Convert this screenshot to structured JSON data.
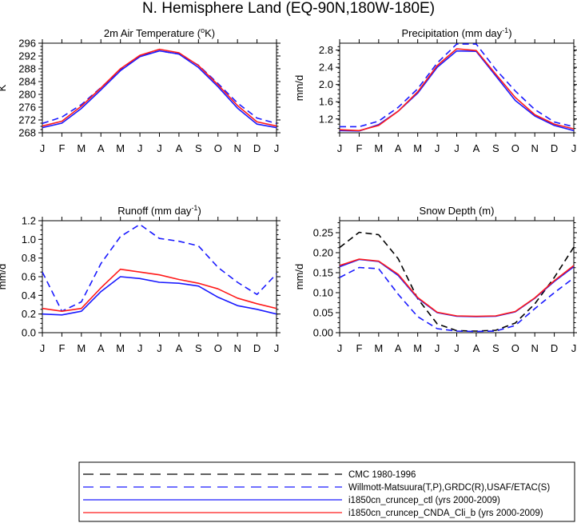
{
  "figure_title": "N. Hemisphere Land (EQ-90N,180W-180E)",
  "months": [
    "J",
    "F",
    "M",
    "A",
    "M",
    "J",
    "J",
    "A",
    "S",
    "O",
    "N",
    "D",
    "J"
  ],
  "legend": [
    {
      "label": "CMC 1980-1996",
      "color": "#000000",
      "dash": true
    },
    {
      "label": "Willmott-Matsuura(T,P),GRDC(R),USAF/ETAC(S)",
      "color": "#1a1aff",
      "dash": true
    },
    {
      "label": "i1850cn_cruncep_ctl (yrs 2000-2009)",
      "color": "#1a1aff",
      "dash": false
    },
    {
      "label": "i1850cn_cruncep_CNDA_Cli_b (yrs 2000-2009)",
      "color": "#ff1a1a",
      "dash": false
    }
  ],
  "chart_data": [
    {
      "type": "line",
      "title": "2m Air Temperature (°K)",
      "title_main": "2m Air Temperature (",
      "title_sup": "o",
      "title_end": "K)",
      "ylabel": "K",
      "ylim": [
        268,
        296
      ],
      "yticks": [
        268,
        272,
        276,
        280,
        284,
        288,
        292,
        296
      ],
      "x": [
        "J",
        "F",
        "M",
        "A",
        "M",
        "J",
        "J",
        "A",
        "S",
        "O",
        "N",
        "D",
        "J"
      ],
      "series": [
        {
          "values": [
            270.9,
            272.9,
            276.8,
            282.1,
            287.6,
            292.0,
            293.6,
            292.6,
            289.1,
            283.4,
            277.3,
            272.6,
            270.9
          ],
          "color": "#1a1aff",
          "dash": true
        },
        {
          "values": [
            269.6,
            271.0,
            275.6,
            281.4,
            287.4,
            291.8,
            293.6,
            292.6,
            288.4,
            282.4,
            275.7,
            270.7,
            269.6
          ],
          "color": "#1a1aff",
          "dash": false
        },
        {
          "values": [
            270.1,
            271.6,
            276.3,
            282.0,
            288.0,
            292.2,
            294.1,
            293.0,
            289.0,
            283.0,
            276.5,
            271.4,
            270.1
          ],
          "color": "#ff1a1a",
          "dash": false
        }
      ]
    },
    {
      "type": "line",
      "title": "Precipitation (mm day-1)",
      "title_main": "Precipitation (mm day",
      "title_sup": "-1",
      "title_end": ")",
      "ylabel": "mm/d",
      "ylim": [
        0.88,
        2.96
      ],
      "yticks": [
        1.2,
        1.6,
        2.0,
        2.4,
        2.8
      ],
      "x": [
        "J",
        "F",
        "M",
        "A",
        "M",
        "J",
        "J",
        "A",
        "S",
        "O",
        "N",
        "D",
        "J"
      ],
      "series": [
        {
          "values": [
            1.02,
            1.02,
            1.15,
            1.47,
            1.9,
            2.5,
            2.94,
            2.94,
            2.35,
            1.85,
            1.42,
            1.13,
            1.02
          ],
          "color": "#1a1aff",
          "dash": true
        },
        {
          "values": [
            0.93,
            0.92,
            1.07,
            1.38,
            1.8,
            2.4,
            2.78,
            2.77,
            2.2,
            1.63,
            1.27,
            1.05,
            0.93
          ],
          "color": "#1a1aff",
          "dash": false
        },
        {
          "values": [
            0.95,
            0.93,
            1.05,
            1.38,
            1.83,
            2.44,
            2.83,
            2.79,
            2.24,
            1.7,
            1.3,
            1.08,
            0.97
          ],
          "color": "#ff1a1a",
          "dash": false
        }
      ]
    },
    {
      "type": "line",
      "title": "Runoff (mm day-1)",
      "title_main": "Runoff (mm day",
      "title_sup": "-1",
      "title_end": ")",
      "ylabel": "mm/d",
      "ylim": [
        0.0,
        1.2
      ],
      "yticks": [
        0.0,
        0.2,
        0.4,
        0.6,
        0.8,
        1.0,
        1.2
      ],
      "x": [
        "J",
        "F",
        "M",
        "A",
        "M",
        "J",
        "J",
        "A",
        "S",
        "O",
        "N",
        "D",
        "J"
      ],
      "series": [
        {
          "values": [
            0.65,
            0.23,
            0.33,
            0.74,
            1.03,
            1.16,
            1.01,
            0.98,
            0.93,
            0.7,
            0.54,
            0.41,
            0.63
          ],
          "color": "#1a1aff",
          "dash": true
        },
        {
          "values": [
            0.2,
            0.19,
            0.23,
            0.44,
            0.6,
            0.58,
            0.54,
            0.53,
            0.5,
            0.38,
            0.29,
            0.25,
            0.2
          ],
          "color": "#1a1aff",
          "dash": false
        },
        {
          "values": [
            0.26,
            0.23,
            0.26,
            0.48,
            0.68,
            0.65,
            0.62,
            0.57,
            0.53,
            0.47,
            0.37,
            0.31,
            0.26
          ],
          "color": "#ff1a1a",
          "dash": false
        }
      ]
    },
    {
      "type": "line",
      "title": "Snow Depth (m)",
      "title_main": "Snow Depth (m)",
      "title_sup": "",
      "title_end": "",
      "ylabel": "mm/d",
      "ylim": [
        0.0,
        0.28
      ],
      "yticks": [
        0.0,
        0.05,
        0.1,
        0.15,
        0.2,
        0.25
      ],
      "x": [
        "J",
        "F",
        "M",
        "A",
        "M",
        "J",
        "J",
        "A",
        "S",
        "O",
        "N",
        "D",
        "J"
      ],
      "series": [
        {
          "values": [
            0.213,
            0.251,
            0.245,
            0.185,
            0.085,
            0.022,
            0.005,
            0.004,
            0.006,
            0.024,
            0.072,
            0.138,
            0.214
          ],
          "color": "#000000",
          "dash": true
        },
        {
          "values": [
            0.138,
            0.163,
            0.16,
            0.096,
            0.04,
            0.01,
            0.004,
            0.003,
            0.004,
            0.018,
            0.06,
            0.1,
            0.137
          ],
          "color": "#1a1aff",
          "dash": true
        },
        {
          "values": [
            0.165,
            0.183,
            0.178,
            0.143,
            0.086,
            0.05,
            0.041,
            0.04,
            0.041,
            0.052,
            0.086,
            0.128,
            0.165
          ],
          "color": "#1a1aff",
          "dash": false
        },
        {
          "values": [
            0.168,
            0.184,
            0.179,
            0.146,
            0.088,
            0.051,
            0.042,
            0.041,
            0.042,
            0.053,
            0.087,
            0.13,
            0.168
          ],
          "color": "#ff1a1a",
          "dash": false
        }
      ]
    }
  ]
}
